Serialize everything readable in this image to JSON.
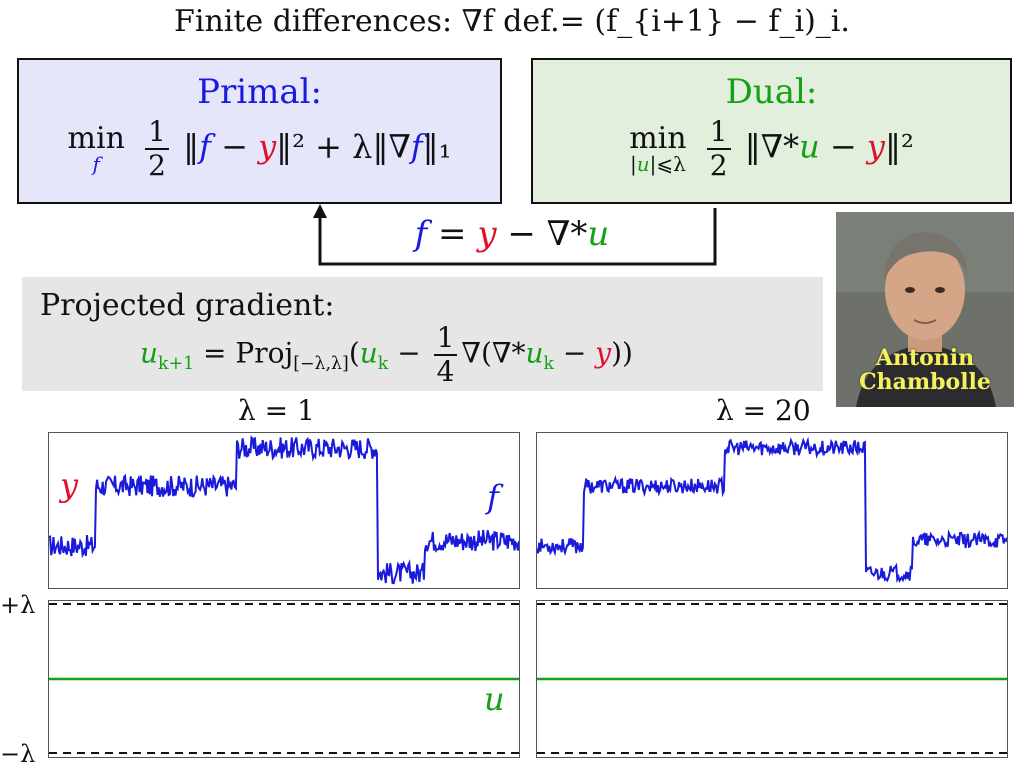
{
  "header": {
    "text": "Finite differences: ∇f def.= (f_{i+1} − f_i)_i."
  },
  "primal": {
    "title": "Primal:",
    "min_op": "min",
    "min_sub": "f",
    "half_num": "1",
    "half_den": "2",
    "objective_a": "‖",
    "f": "f",
    "minus": " − ",
    "y": "y",
    "sq": "‖²",
    "plus_term": " + λ‖∇",
    "f2": "f",
    "l1": "‖₁"
  },
  "dual": {
    "title": "Dual:",
    "min_op": "min",
    "min_sub_open": "|",
    "min_sub_u": "u",
    "min_sub_close": "|⩽λ",
    "half_num": "1",
    "half_den": "2",
    "term_a": "‖∇*",
    "u": "u",
    "minus": " − ",
    "y": "y",
    "sq": "‖²"
  },
  "relation": {
    "f": "f",
    "eq": " = ",
    "y": "y",
    "mid": " − ∇*",
    "u": "u"
  },
  "projected": {
    "title": "Projected gradient:",
    "lhs_u": "u",
    "lhs_sub": "k+1",
    "proj": " = Proj",
    "proj_sub": "[−λ,λ]",
    "open": "(",
    "u1": "u",
    "u1_sub": "k",
    "minus": " − ",
    "frac_num": "1",
    "frac_den": "4",
    "grad": "∇(∇*",
    "u2": "u",
    "u2_sub": "k",
    "minus2": " − ",
    "y": "y",
    "close": "))"
  },
  "portrait": {
    "name_line1": "Antonin",
    "name_line2": "Chambolle"
  },
  "plots": {
    "left_title": "λ = 1",
    "right_title": "λ = 20",
    "y_label": "y",
    "f_label": "f",
    "u_label": "u",
    "plus_lambda": "+λ",
    "minus_lambda": "−λ"
  },
  "colors": {
    "blue": "#1a1adc",
    "red": "#e0102a",
    "green": "#16a016",
    "primal_bg": "#e6e6fb",
    "dual_bg": "#e2efdc",
    "proj_bg": "#e6e6e6"
  },
  "chart_data": [
    {
      "type": "line",
      "title": "λ = 1",
      "series": [
        {
          "name": "y",
          "segments": [
            [
              0,
              0.0,
              0.1,
              0.0
            ],
            [
              0.1,
              0.55,
              0.4,
              0.55
            ],
            [
              0.4,
              0.9,
              0.7,
              0.9
            ],
            [
              0.7,
              -0.25,
              0.8,
              -0.25
            ],
            [
              0.8,
              0.05,
              1.0,
              0.05
            ]
          ]
        }
      ]
    },
    {
      "type": "line",
      "title": "λ = 20",
      "series": [
        {
          "name": "y",
          "segments": [
            [
              0,
              0.0,
              0.1,
              0.0
            ],
            [
              0.1,
              0.55,
              0.4,
              0.55
            ],
            [
              0.4,
              0.9,
              0.7,
              0.9
            ],
            [
              0.7,
              -0.25,
              0.8,
              -0.25
            ],
            [
              0.8,
              0.05,
              1.0,
              0.05
            ]
          ]
        }
      ]
    },
    {
      "type": "line",
      "series": [
        {
          "name": "u",
          "level": 0.0
        }
      ],
      "ylim": [
        "−λ",
        "+λ"
      ]
    },
    {
      "type": "line",
      "series": [
        {
          "name": "u",
          "level": 0.0
        }
      ],
      "ylim": [
        "−λ",
        "+λ"
      ]
    }
  ]
}
